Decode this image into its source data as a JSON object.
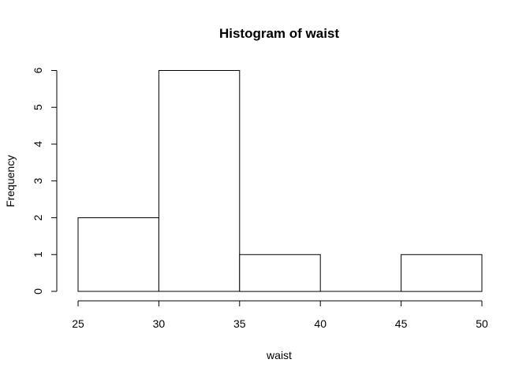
{
  "chart_data": {
    "type": "bar",
    "subtype": "histogram",
    "title": "Histogram of waist",
    "xlabel": "waist",
    "ylabel": "Frequency",
    "bins": [
      {
        "start": 25,
        "end": 30,
        "count": 2
      },
      {
        "start": 30,
        "end": 35,
        "count": 6
      },
      {
        "start": 35,
        "end": 40,
        "count": 1
      },
      {
        "start": 40,
        "end": 45,
        "count": 0
      },
      {
        "start": 45,
        "end": 50,
        "count": 1
      }
    ],
    "xlim": [
      25,
      50
    ],
    "ylim": [
      0,
      6
    ],
    "x_ticks": [
      25,
      30,
      35,
      40,
      45,
      50
    ],
    "y_ticks": [
      0,
      1,
      2,
      3,
      4,
      5,
      6
    ],
    "grid": false,
    "colors": {
      "bar_fill": "#ffffff",
      "bar_stroke": "#000000"
    }
  }
}
